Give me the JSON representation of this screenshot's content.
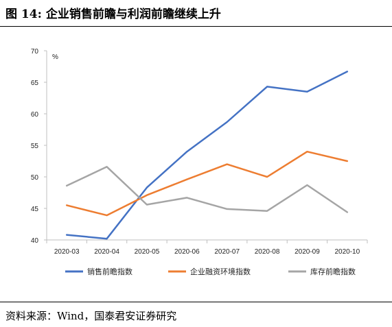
{
  "figure": {
    "number": "图 14:",
    "title": "企业销售前瞻与利润前瞻继续上升",
    "source": "资料来源：Wind，国泰君安证券研究"
  },
  "chart_data": {
    "type": "line",
    "categories": [
      "2020-03",
      "2020-04",
      "2020-05",
      "2020-06",
      "2020-07",
      "2020-08",
      "2020-09",
      "2020-10"
    ],
    "series": [
      {
        "name": "销售前瞻指数",
        "color": "#4472C4",
        "values": [
          40.8,
          40.2,
          48.3,
          54.0,
          58.7,
          64.3,
          63.5,
          66.7
        ]
      },
      {
        "name": "企业融资环境指数",
        "color": "#ED7D31",
        "values": [
          45.5,
          43.9,
          47.1,
          49.6,
          52.0,
          50.0,
          54.0,
          52.5
        ]
      },
      {
        "name": "库存前瞻指数",
        "color": "#A5A5A5",
        "values": [
          48.6,
          51.6,
          45.6,
          46.7,
          44.9,
          44.6,
          48.7,
          44.4
        ]
      }
    ],
    "ylim": [
      40,
      70
    ],
    "yticks": [
      40,
      45,
      50,
      55,
      60,
      65,
      70
    ],
    "ylabel": "%",
    "grid": false,
    "legend_position": "bottom"
  }
}
